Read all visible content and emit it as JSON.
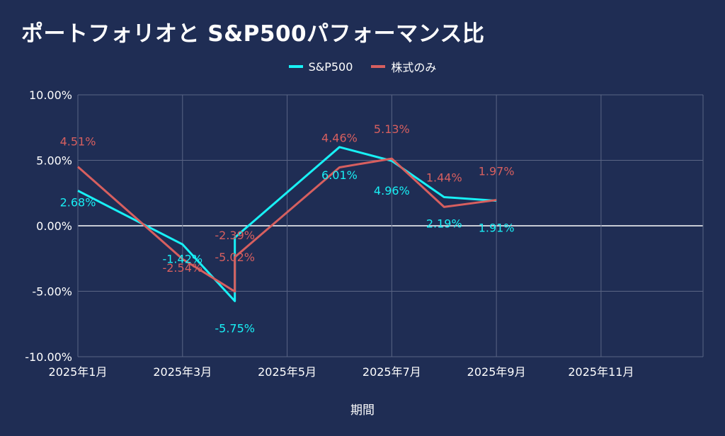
{
  "title": "ポートフォリオと S&P500パフォーマンス比",
  "chart_data": {
    "type": "line",
    "title": "ポートフォリオと S&P500パフォーマンス比",
    "xlabel": "期間",
    "ylabel": "",
    "ylim": [
      -10,
      10
    ],
    "yticks": [
      "10.00%",
      "5.00%",
      "0.00%",
      "-5.00%",
      "-10.00%"
    ],
    "ytick_values": [
      10,
      5,
      0,
      -5,
      -10
    ],
    "xticks": [
      "2025年1月",
      "2025年3月",
      "2025年5月",
      "2025年7月",
      "2025年9月",
      "2025年11月"
    ],
    "xtick_months": [
      1,
      3,
      5,
      7,
      9,
      11
    ],
    "xlim_months": [
      1,
      12.95
    ],
    "grid": true,
    "legend_position": "top-center",
    "series": [
      {
        "name": "S&P500",
        "color": "#18f0f5",
        "x_months": [
          1,
          3,
          4,
          4,
          6,
          7,
          8,
          9
        ],
        "values": [
          2.68,
          -1.42,
          -5.75,
          -0.9,
          6.01,
          4.96,
          2.19,
          1.91
        ],
        "labels": [
          "2.68%",
          "-1.42%",
          "-5.75%",
          "",
          "6.01%",
          "4.96%",
          "2.19%",
          "1.91%"
        ]
      },
      {
        "name": "株式のみ",
        "color": "#d75f5f",
        "x_months": [
          1,
          3,
          4,
          4,
          6,
          7,
          8,
          9
        ],
        "values": [
          4.51,
          -2.54,
          -5.02,
          -2.39,
          4.46,
          5.13,
          1.44,
          1.97
        ],
        "labels": [
          "4.51%",
          "-2.54%",
          "-5.02%",
          "-2.39%",
          "4.46%",
          "5.13%",
          "1.44%",
          "1.97%"
        ]
      }
    ]
  }
}
